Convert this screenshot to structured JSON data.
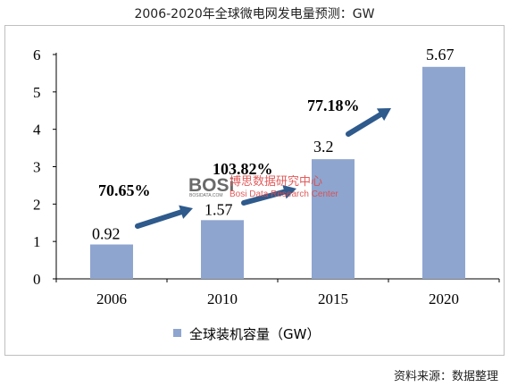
{
  "page": {
    "title": "2006-2020年全球微电网发电量预测：GW",
    "source": "资料来源：数据整理"
  },
  "watermark": {
    "brand": "BOSi",
    "brand_small": "BOSIDATA.COM",
    "cn": "博思数据研究中心",
    "en": "Bosi Data Research Center"
  },
  "chart_data": {
    "type": "bar",
    "categories": [
      "2006",
      "2010",
      "2015",
      "2020"
    ],
    "series": [
      {
        "name": "全球装机容量（GW）",
        "values": [
          0.92,
          1.57,
          3.2,
          5.67
        ],
        "color": "#8ea5cf"
      }
    ],
    "value_labels": [
      "0.92",
      "1.57",
      "3.2",
      "5.67"
    ],
    "ylim": [
      0,
      6
    ],
    "yticks": [
      0,
      1,
      2,
      3,
      4,
      5,
      6
    ],
    "ytick_labels": [
      "0",
      "1",
      "2",
      "3",
      "4",
      "5",
      "6"
    ],
    "growth_annotations": [
      {
        "label": "70.65%",
        "from": "2006",
        "to": "2010"
      },
      {
        "label": "103.82%",
        "from": "2010",
        "to": "2015"
      },
      {
        "label": "77.18%",
        "from": "2015",
        "to": "2020"
      }
    ],
    "arrow_color": "#2e5a8c",
    "legend_position": "bottom",
    "grid": false
  }
}
